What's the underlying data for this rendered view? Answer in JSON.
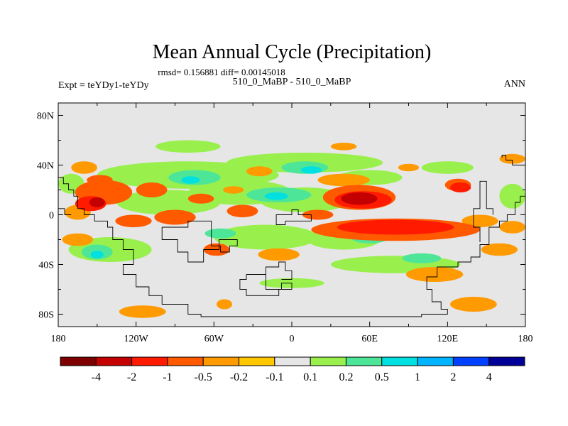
{
  "chart_data": {
    "type": "heatmap",
    "title": "Mean Annual Cycle (Precipitation)",
    "stats_line": "rmsd= 0.156881 diff= 0.00145018",
    "left_label": "Expt = teYDy1-teYDy",
    "center_label": "510_0_MaBP - 510_0_MaBP",
    "right_label": "ANN",
    "x_ticks": [
      {
        "value": -180,
        "label": "180"
      },
      {
        "value": -120,
        "label": "120W"
      },
      {
        "value": -60,
        "label": "60W"
      },
      {
        "value": 0,
        "label": "0"
      },
      {
        "value": 60,
        "label": "60E"
      },
      {
        "value": 120,
        "label": "120E"
      },
      {
        "value": 180,
        "label": "180"
      }
    ],
    "y_ticks": [
      {
        "value": 80,
        "label": "80N"
      },
      {
        "value": 40,
        "label": "40N"
      },
      {
        "value": 0,
        "label": "0"
      },
      {
        "value": -40,
        "label": "40S"
      },
      {
        "value": -80,
        "label": "80S"
      }
    ],
    "xlim": [
      -180,
      180
    ],
    "ylim": [
      -90,
      90
    ],
    "colorbar": {
      "colors": [
        "#7f0000",
        "#c40000",
        "#ff1a00",
        "#ff5a00",
        "#ff9a00",
        "#ffc800",
        "#e6e6e6",
        "#99f04d",
        "#4de699",
        "#00e0e0",
        "#00b4ff",
        "#0040ff",
        "#000099"
      ],
      "labels": [
        "-4",
        "-2",
        "-1",
        "-0.5",
        "-0.2",
        "-0.1",
        "0.1",
        "0.2",
        "0.5",
        "1",
        "2",
        "4"
      ]
    },
    "background_color": "#e6e6e6",
    "anomaly_regions": [
      {
        "level": 1,
        "lon": 52,
        "lat": 13,
        "rx": 14,
        "ry": 5
      },
      {
        "level": 1,
        "lon": -150,
        "lat": 10,
        "rx": 6,
        "ry": 4
      },
      {
        "level": 2,
        "lon": -155,
        "lat": 9,
        "rx": 12,
        "ry": 6
      },
      {
        "level": 2,
        "lon": 55,
        "lat": 12,
        "rx": 22,
        "ry": 7
      },
      {
        "level": 2,
        "lon": 80,
        "lat": -10,
        "rx": 45,
        "ry": 6
      },
      {
        "level": 2,
        "lon": 130,
        "lat": 22,
        "rx": 8,
        "ry": 4
      },
      {
        "level": 3,
        "lon": -145,
        "lat": 18,
        "rx": 22,
        "ry": 10
      },
      {
        "level": 3,
        "lon": -108,
        "lat": 20,
        "rx": 12,
        "ry": 6
      },
      {
        "level": 3,
        "lon": -70,
        "lat": 13,
        "rx": 10,
        "ry": 4
      },
      {
        "level": 3,
        "lon": -38,
        "lat": 3,
        "rx": 12,
        "ry": 5
      },
      {
        "level": 3,
        "lon": 20,
        "lat": 0,
        "rx": 12,
        "ry": 4
      },
      {
        "level": 3,
        "lon": 52,
        "lat": 14,
        "rx": 28,
        "ry": 10
      },
      {
        "level": 3,
        "lon": 80,
        "lat": -12,
        "rx": 65,
        "ry": 9
      },
      {
        "level": 3,
        "lon": -90,
        "lat": -2,
        "rx": 16,
        "ry": 6
      },
      {
        "level": 3,
        "lon": -122,
        "lat": -5,
        "rx": 14,
        "ry": 5
      },
      {
        "level": 3,
        "lon": 128,
        "lat": 24,
        "rx": 10,
        "ry": 5
      },
      {
        "level": 3,
        "lon": -58,
        "lat": -28,
        "rx": 10,
        "ry": 5
      },
      {
        "level": 3,
        "lon": -148,
        "lat": 28,
        "rx": 10,
        "ry": 4
      },
      {
        "level": 4,
        "lon": -165,
        "lat": 2,
        "rx": 10,
        "ry": 6
      },
      {
        "level": 4,
        "lon": 145,
        "lat": -5,
        "rx": 14,
        "ry": 5
      },
      {
        "level": 4,
        "lon": 160,
        "lat": -28,
        "rx": 14,
        "ry": 5
      },
      {
        "level": 4,
        "lon": -10,
        "lat": -32,
        "rx": 16,
        "ry": 5
      },
      {
        "level": 4,
        "lon": 110,
        "lat": -48,
        "rx": 22,
        "ry": 6
      },
      {
        "level": 4,
        "lon": 40,
        "lat": 28,
        "rx": 20,
        "ry": 5
      },
      {
        "level": 4,
        "lon": -160,
        "lat": 38,
        "rx": 10,
        "ry": 5
      },
      {
        "level": 4,
        "lon": -25,
        "lat": 35,
        "rx": 10,
        "ry": 4
      },
      {
        "level": 4,
        "lon": 140,
        "lat": -72,
        "rx": 18,
        "ry": 6
      },
      {
        "level": 4,
        "lon": -115,
        "lat": -78,
        "rx": 18,
        "ry": 5
      },
      {
        "level": 4,
        "lon": -52,
        "lat": -72,
        "rx": 6,
        "ry": 4
      },
      {
        "level": 4,
        "lon": 170,
        "lat": -10,
        "rx": 10,
        "ry": 5
      },
      {
        "level": 4,
        "lon": -165,
        "lat": -20,
        "rx": 12,
        "ry": 5
      },
      {
        "level": 4,
        "lon": 90,
        "lat": 38,
        "rx": 8,
        "ry": 3
      },
      {
        "level": 4,
        "lon": 40,
        "lat": 55,
        "rx": 10,
        "ry": 3
      },
      {
        "level": 4,
        "lon": 170,
        "lat": 45,
        "rx": 10,
        "ry": 4
      },
      {
        "level": 4,
        "lon": -45,
        "lat": 20,
        "rx": 8,
        "ry": 3
      },
      {
        "level": 7,
        "lon": -80,
        "lat": 32,
        "rx": 70,
        "ry": 11
      },
      {
        "level": 7,
        "lon": 10,
        "lat": 42,
        "rx": 60,
        "ry": 8
      },
      {
        "level": 7,
        "lon": -95,
        "lat": 10,
        "rx": 40,
        "ry": 10
      },
      {
        "level": 7,
        "lon": -40,
        "lat": 18,
        "rx": 40,
        "ry": 10
      },
      {
        "level": 7,
        "lon": 10,
        "lat": 12,
        "rx": 35,
        "ry": 10
      },
      {
        "level": 7,
        "lon": -20,
        "lat": -18,
        "rx": 40,
        "ry": 10
      },
      {
        "level": 7,
        "lon": 40,
        "lat": -20,
        "rx": 28,
        "ry": 8
      },
      {
        "level": 7,
        "lon": -140,
        "lat": -28,
        "rx": 32,
        "ry": 10
      },
      {
        "level": 7,
        "lon": 80,
        "lat": -40,
        "rx": 50,
        "ry": 7
      },
      {
        "level": 7,
        "lon": 120,
        "lat": 38,
        "rx": 20,
        "ry": 5
      },
      {
        "level": 7,
        "lon": -170,
        "lat": 25,
        "rx": 10,
        "ry": 8
      },
      {
        "level": 7,
        "lon": 170,
        "lat": 15,
        "rx": 10,
        "ry": 10
      },
      {
        "level": 7,
        "lon": 60,
        "lat": 30,
        "rx": 25,
        "ry": 6
      },
      {
        "level": 7,
        "lon": -80,
        "lat": 55,
        "rx": 25,
        "ry": 5
      },
      {
        "level": 7,
        "lon": 0,
        "lat": -55,
        "rx": 25,
        "ry": 4
      },
      {
        "level": 8,
        "lon": -10,
        "lat": 16,
        "rx": 25,
        "ry": 6
      },
      {
        "level": 8,
        "lon": -75,
        "lat": 30,
        "rx": 20,
        "ry": 6
      },
      {
        "level": 8,
        "lon": 10,
        "lat": 38,
        "rx": 18,
        "ry": 5
      },
      {
        "level": 8,
        "lon": -150,
        "lat": -30,
        "rx": 12,
        "ry": 6
      },
      {
        "level": 8,
        "lon": 60,
        "lat": -18,
        "rx": 15,
        "ry": 5
      },
      {
        "level": 8,
        "lon": -55,
        "lat": -15,
        "rx": 12,
        "ry": 4
      },
      {
        "level": 8,
        "lon": 100,
        "lat": -35,
        "rx": 15,
        "ry": 4
      },
      {
        "level": 9,
        "lon": -12,
        "lat": 15,
        "rx": 9,
        "ry": 3
      },
      {
        "level": 9,
        "lon": -78,
        "lat": 28,
        "rx": 7,
        "ry": 3
      },
      {
        "level": 9,
        "lon": 15,
        "lat": 36,
        "rx": 8,
        "ry": 3
      },
      {
        "level": 9,
        "lon": -150,
        "lat": -32,
        "rx": 5,
        "ry": 3
      }
    ],
    "coastline_lonlat": [
      [
        [
          -180,
          30
        ],
        [
          -176,
          30
        ],
        [
          -176,
          25
        ],
        [
          -172,
          25
        ],
        [
          -172,
          20
        ],
        [
          -168,
          20
        ],
        [
          -168,
          15
        ],
        [
          -165,
          15
        ],
        [
          -165,
          5
        ],
        [
          -160,
          5
        ],
        [
          -160,
          0
        ],
        [
          -152,
          0
        ],
        [
          -152,
          -5
        ],
        [
          -142,
          -5
        ],
        [
          -142,
          -10
        ],
        [
          -138,
          -10
        ],
        [
          -138,
          -20
        ],
        [
          -130,
          -20
        ],
        [
          -130,
          -28
        ],
        [
          -122,
          -28
        ],
        [
          -122,
          -40
        ],
        [
          -130,
          -40
        ],
        [
          -130,
          -48
        ],
        [
          -120,
          -48
        ],
        [
          -120,
          -58
        ],
        [
          -110,
          -58
        ],
        [
          -110,
          -65
        ],
        [
          -100,
          -65
        ],
        [
          -100,
          -72
        ],
        [
          -80,
          -72
        ],
        [
          -80,
          -80
        ],
        [
          -70,
          -80
        ],
        [
          -70,
          -82
        ],
        [
          100,
          -82
        ],
        [
          100,
          -80
        ],
        [
          120,
          -80
        ],
        [
          120,
          -76
        ],
        [
          115,
          -76
        ],
        [
          115,
          -70
        ],
        [
          108,
          -70
        ],
        [
          108,
          -60
        ],
        [
          104,
          -60
        ],
        [
          104,
          -50
        ],
        [
          112,
          -50
        ],
        [
          112,
          -42
        ],
        [
          128,
          -42
        ],
        [
          128,
          -38
        ],
        [
          138,
          -38
        ],
        [
          138,
          -34
        ],
        [
          145,
          -34
        ],
        [
          145,
          -24
        ],
        [
          152,
          -24
        ],
        [
          152,
          -10
        ],
        [
          160,
          -10
        ],
        [
          160,
          -5
        ],
        [
          166,
          -5
        ],
        [
          166,
          0
        ],
        [
          172,
          0
        ],
        [
          172,
          10
        ],
        [
          176,
          10
        ],
        [
          176,
          15
        ],
        [
          180,
          15
        ]
      ],
      [
        [
          -180,
          5
        ],
        [
          -175,
          5
        ],
        [
          -175,
          0
        ],
        [
          -170,
          0
        ]
      ],
      [
        [
          -100,
          -10
        ],
        [
          -80,
          -10
        ],
        [
          -80,
          -5
        ],
        [
          -62,
          -5
        ],
        [
          -62,
          -25
        ],
        [
          -55,
          -25
        ],
        [
          -55,
          -30
        ],
        [
          -48,
          -30
        ],
        [
          -48,
          -25
        ],
        [
          -42,
          -25
        ],
        [
          -42,
          -20
        ],
        [
          -56,
          -20
        ],
        [
          -56,
          -28
        ],
        [
          -68,
          -28
        ],
        [
          -68,
          -38
        ],
        [
          -80,
          -38
        ],
        [
          -80,
          -30
        ],
        [
          -88,
          -30
        ],
        [
          -88,
          -20
        ],
        [
          -100,
          -20
        ],
        [
          -100,
          -10
        ]
      ],
      [
        [
          -5,
          0
        ],
        [
          0,
          0
        ],
        [
          0,
          4
        ],
        [
          5,
          4
        ],
        [
          5,
          0
        ],
        [
          15,
          0
        ],
        [
          15,
          -5
        ],
        [
          -5,
          -5
        ],
        [
          -5,
          -8
        ],
        [
          -12,
          -8
        ],
        [
          -12,
          0
        ],
        [
          -5,
          0
        ]
      ],
      [
        [
          -35,
          -48
        ],
        [
          -20,
          -48
        ],
        [
          -20,
          -60
        ],
        [
          -8,
          -60
        ],
        [
          -8,
          -55
        ],
        [
          0,
          -55
        ],
        [
          0,
          -60
        ],
        [
          -10,
          -60
        ],
        [
          -10,
          -65
        ],
        [
          -35,
          -65
        ],
        [
          -35,
          -60
        ],
        [
          -40,
          -60
        ],
        [
          -40,
          -52
        ],
        [
          -35,
          -52
        ],
        [
          -35,
          -48
        ]
      ],
      [
        [
          -20,
          -48
        ],
        [
          -20,
          -42
        ],
        [
          -10,
          -42
        ],
        [
          -10,
          -38
        ],
        [
          -5,
          -38
        ],
        [
          -5,
          -45
        ],
        [
          0,
          -45
        ],
        [
          0,
          -52
        ],
        [
          -8,
          -52
        ]
      ],
      [
        [
          145,
          -22
        ],
        [
          145,
          -10
        ],
        [
          140,
          -10
        ],
        [
          140,
          5
        ],
        [
          145,
          5
        ],
        [
          145,
          27
        ],
        [
          150,
          27
        ],
        [
          150,
          5
        ],
        [
          155,
          5
        ],
        [
          155,
          0
        ]
      ],
      [
        [
          162,
          46
        ],
        [
          162,
          48
        ],
        [
          165,
          48
        ],
        [
          165,
          44
        ],
        [
          170,
          44
        ],
        [
          170,
          40
        ],
        [
          180,
          40
        ]
      ]
    ]
  }
}
